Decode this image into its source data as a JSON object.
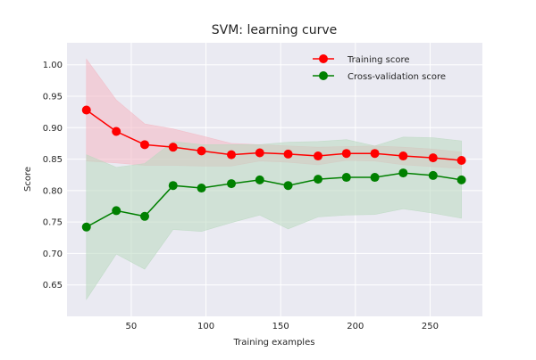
{
  "chart_data": {
    "type": "line",
    "title": "SVM: learning curve",
    "xlabel": "Training examples",
    "ylabel": "Score",
    "xlim": [
      7,
      285
    ],
    "ylim": [
      0.6,
      1.035
    ],
    "grid": true,
    "legend_position": "top-right",
    "x_ticks": [
      50,
      100,
      150,
      200,
      250
    ],
    "y_ticks": [
      0.65,
      0.7,
      0.75,
      0.8,
      0.85,
      0.9,
      0.95,
      1.0
    ],
    "x_tick_labels": [
      "50",
      "100",
      "150",
      "200",
      "250"
    ],
    "y_tick_labels": [
      "0.65",
      "0.70",
      "0.75",
      "0.80",
      "0.85",
      "0.90",
      "0.95",
      "1.00"
    ],
    "x": [
      20,
      40,
      59,
      78,
      97,
      117,
      136,
      155,
      175,
      194,
      213,
      232,
      252,
      271
    ],
    "series": [
      {
        "name": "Training score",
        "color": "#ff0000",
        "band_color": "#f4b6c2",
        "values": [
          0.928,
          0.894,
          0.873,
          0.869,
          0.863,
          0.857,
          0.86,
          0.858,
          0.855,
          0.859,
          0.859,
          0.855,
          0.852,
          0.848
        ],
        "band_upper": [
          1.009,
          0.944,
          0.906,
          0.898,
          0.887,
          0.875,
          0.873,
          0.871,
          0.869,
          0.87,
          0.871,
          0.869,
          0.866,
          0.861
        ],
        "band_lower": [
          0.847,
          0.844,
          0.84,
          0.84,
          0.839,
          0.839,
          0.847,
          0.845,
          0.841,
          0.848,
          0.847,
          0.841,
          0.838,
          0.835
        ]
      },
      {
        "name": "Cross-validation score",
        "color": "#008000",
        "band_color": "#b9d8bf",
        "values": [
          0.742,
          0.768,
          0.759,
          0.808,
          0.804,
          0.811,
          0.817,
          0.808,
          0.818,
          0.821,
          0.821,
          0.828,
          0.824,
          0.817
        ],
        "band_upper": [
          0.857,
          0.837,
          0.843,
          0.878,
          0.873,
          0.873,
          0.873,
          0.877,
          0.878,
          0.881,
          0.871,
          0.885,
          0.884,
          0.879
        ],
        "band_lower": [
          0.627,
          0.699,
          0.675,
          0.738,
          0.735,
          0.749,
          0.761,
          0.739,
          0.758,
          0.761,
          0.762,
          0.771,
          0.764,
          0.756
        ]
      }
    ]
  }
}
